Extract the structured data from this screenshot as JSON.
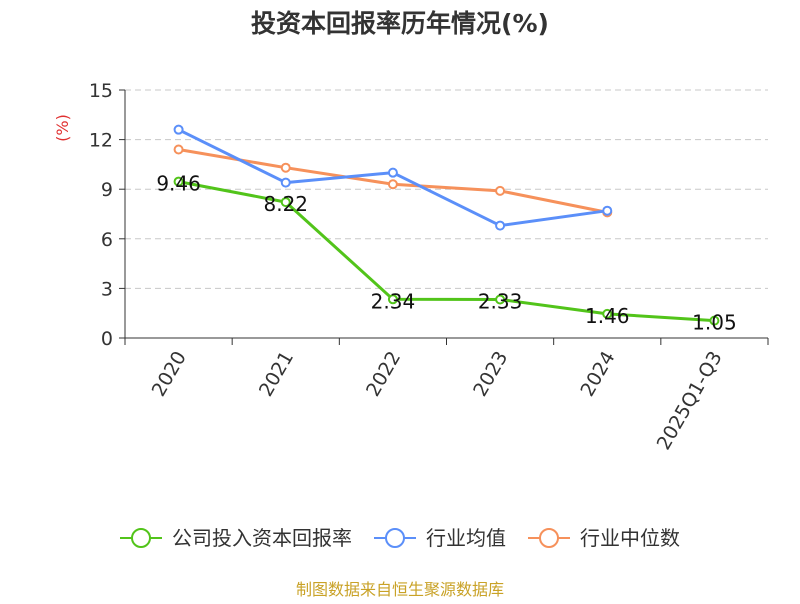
{
  "chart_data": {
    "type": "line",
    "title": "投资本回报率历年情况(%)",
    "ylabel": "(%)",
    "ylim": [
      0,
      15
    ],
    "yticks": [
      0,
      3,
      6,
      9,
      12,
      15
    ],
    "categories": [
      "2020",
      "2021",
      "2022",
      "2023",
      "2024",
      "2025Q1-Q3"
    ],
    "grid": true,
    "legend_position": "bottom",
    "series": [
      {
        "name": "公司投入资本回报率",
        "color": "#52c41a",
        "values": [
          9.46,
          8.22,
          2.34,
          2.33,
          1.46,
          1.05
        ],
        "data_labels": [
          "9.46",
          "8.22",
          "2.34",
          "2.33",
          "1.46",
          "1.05"
        ]
      },
      {
        "name": "行业均值",
        "color": "#5b8ff9",
        "values": [
          12.6,
          9.4,
          10.0,
          6.8,
          7.7,
          null
        ],
        "data_labels": []
      },
      {
        "name": "行业中位数",
        "color": "#f6915b",
        "values": [
          11.4,
          10.3,
          9.3,
          8.9,
          7.6,
          null
        ],
        "data_labels": []
      }
    ]
  },
  "footer": "制图数据来自恒生聚源数据库"
}
